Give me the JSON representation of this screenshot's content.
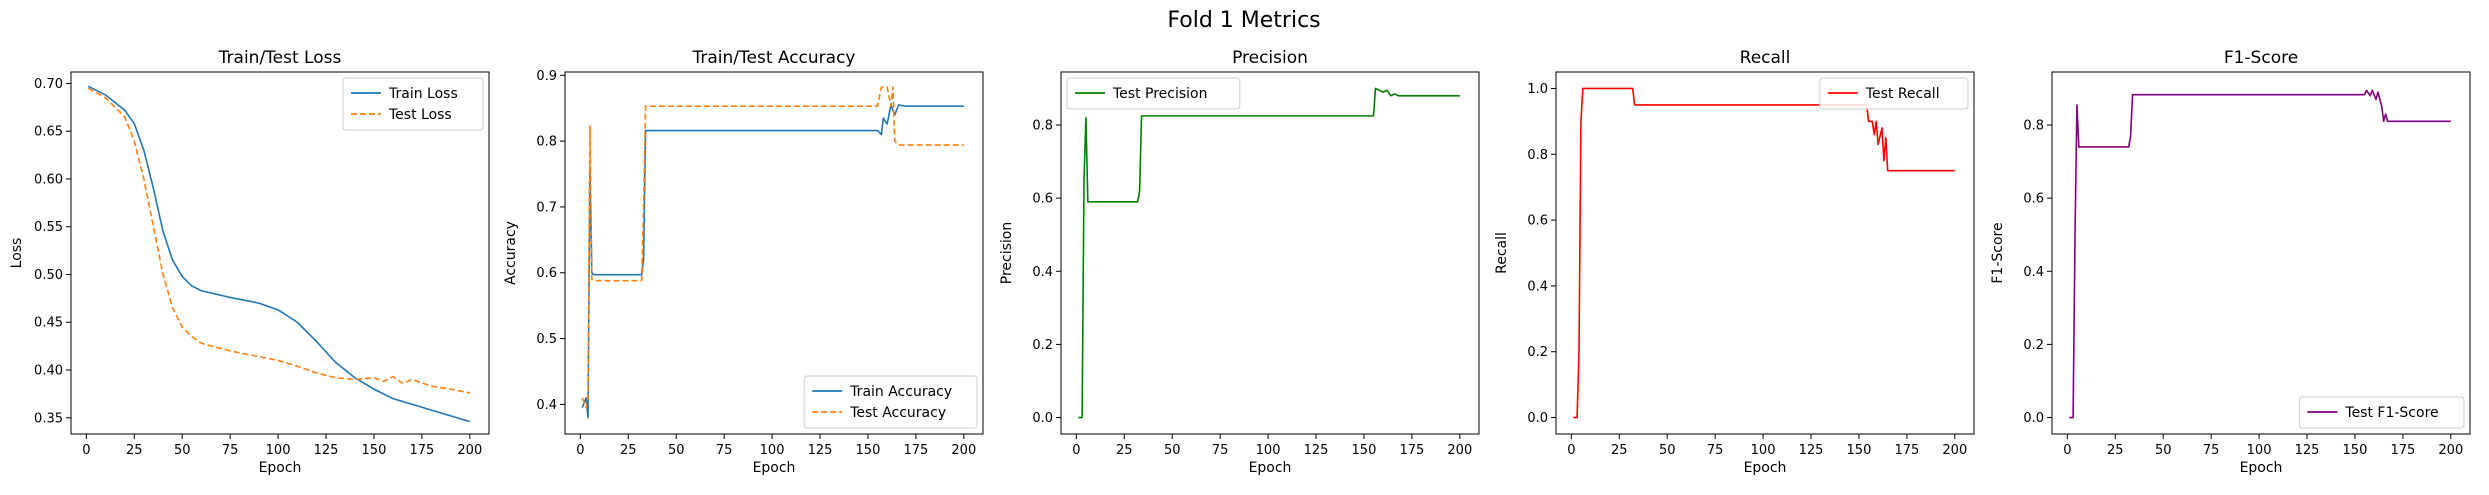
{
  "figure": {
    "suptitle": "Fold 1 Metrics"
  },
  "chart_data": [
    {
      "type": "line",
      "title": "Train/Test Loss",
      "xlabel": "Epoch",
      "ylabel": "Loss",
      "xlim": [
        -8,
        210
      ],
      "ylim": [
        0.333,
        0.712
      ],
      "xticks": [
        0,
        25,
        50,
        75,
        100,
        125,
        150,
        175,
        200
      ],
      "yticks": [
        0.35,
        0.4,
        0.45,
        0.5,
        0.55,
        0.6,
        0.65,
        0.7
      ],
      "ytick_labels": [
        "0.35",
        "0.40",
        "0.45",
        "0.50",
        "0.55",
        "0.60",
        "0.65",
        "0.70"
      ],
      "legend": "upper right",
      "grid": false,
      "series": [
        {
          "name": "Train Loss",
          "color": "#1f77b4",
          "style": "solid",
          "points": [
            [
              1,
              0.697
            ],
            [
              10,
              0.688
            ],
            [
              20,
              0.672
            ],
            [
              25,
              0.658
            ],
            [
              30,
              0.63
            ],
            [
              35,
              0.59
            ],
            [
              40,
              0.545
            ],
            [
              45,
              0.515
            ],
            [
              50,
              0.498
            ],
            [
              55,
              0.488
            ],
            [
              60,
              0.483
            ],
            [
              75,
              0.476
            ],
            [
              90,
              0.47
            ],
            [
              100,
              0.463
            ],
            [
              110,
              0.45
            ],
            [
              120,
              0.43
            ],
            [
              130,
              0.408
            ],
            [
              140,
              0.392
            ],
            [
              150,
              0.38
            ],
            [
              160,
              0.37
            ],
            [
              170,
              0.364
            ],
            [
              180,
              0.358
            ],
            [
              190,
              0.352
            ],
            [
              200,
              0.346
            ]
          ]
        },
        {
          "name": "Test Loss",
          "color": "#ff7f0e",
          "style": "dashed",
          "points": [
            [
              1,
              0.695
            ],
            [
              10,
              0.685
            ],
            [
              20,
              0.665
            ],
            [
              25,
              0.64
            ],
            [
              30,
              0.6
            ],
            [
              35,
              0.55
            ],
            [
              40,
              0.5
            ],
            [
              45,
              0.465
            ],
            [
              50,
              0.445
            ],
            [
              55,
              0.435
            ],
            [
              60,
              0.428
            ],
            [
              75,
              0.42
            ],
            [
              90,
              0.414
            ],
            [
              100,
              0.41
            ],
            [
              110,
              0.404
            ],
            [
              120,
              0.397
            ],
            [
              130,
              0.392
            ],
            [
              140,
              0.39
            ],
            [
              150,
              0.392
            ],
            [
              155,
              0.388
            ],
            [
              160,
              0.393
            ],
            [
              165,
              0.386
            ],
            [
              170,
              0.39
            ],
            [
              180,
              0.383
            ],
            [
              190,
              0.38
            ],
            [
              200,
              0.376
            ]
          ]
        }
      ]
    },
    {
      "type": "line",
      "title": "Train/Test Accuracy",
      "xlabel": "Epoch",
      "ylabel": "Accuracy",
      "xlim": [
        -8,
        210
      ],
      "ylim": [
        0.355,
        0.905
      ],
      "xticks": [
        0,
        25,
        50,
        75,
        100,
        125,
        150,
        175,
        200
      ],
      "yticks": [
        0.4,
        0.5,
        0.6,
        0.7,
        0.8,
        0.9
      ],
      "ytick_labels": [
        "0.4",
        "0.5",
        "0.6",
        "0.7",
        "0.8",
        "0.9"
      ],
      "legend": "lower right",
      "grid": false,
      "series": [
        {
          "name": "Train Accuracy",
          "color": "#1f77b4",
          "style": "solid",
          "points": [
            [
              1,
              0.395
            ],
            [
              3,
              0.41
            ],
            [
              4,
              0.38
            ],
            [
              5,
              0.76
            ],
            [
              6,
              0.6
            ],
            [
              7,
              0.597
            ],
            [
              32,
              0.597
            ],
            [
              33,
              0.62
            ],
            [
              34,
              0.816
            ],
            [
              155,
              0.816
            ],
            [
              157,
              0.81
            ],
            [
              158,
              0.835
            ],
            [
              160,
              0.826
            ],
            [
              162,
              0.855
            ],
            [
              164,
              0.84
            ],
            [
              166,
              0.855
            ],
            [
              170,
              0.853
            ],
            [
              200,
              0.853
            ]
          ]
        },
        {
          "name": "Test Accuracy",
          "color": "#ff7f0e",
          "style": "dashed",
          "points": [
            [
              1,
              0.41
            ],
            [
              3,
              0.395
            ],
            [
              4,
              0.41
            ],
            [
              5,
              0.823
            ],
            [
              6,
              0.59
            ],
            [
              7,
              0.588
            ],
            [
              32,
              0.588
            ],
            [
              33,
              0.7
            ],
            [
              34,
              0.853
            ],
            [
              155,
              0.853
            ],
            [
              157,
              0.882
            ],
            [
              160,
              0.882
            ],
            [
              162,
              0.853
            ],
            [
              163,
              0.882
            ],
            [
              164,
              0.8
            ],
            [
              166,
              0.794
            ],
            [
              200,
              0.794
            ]
          ]
        }
      ]
    },
    {
      "type": "line",
      "title": "Precision",
      "xlabel": "Epoch",
      "ylabel": "Precision",
      "xlim": [
        -8,
        210
      ],
      "ylim": [
        -0.045,
        0.945
      ],
      "xticks": [
        0,
        25,
        50,
        75,
        100,
        125,
        150,
        175,
        200
      ],
      "yticks": [
        0.0,
        0.2,
        0.4,
        0.6,
        0.8
      ],
      "ytick_labels": [
        "0.0",
        "0.2",
        "0.4",
        "0.6",
        "0.8"
      ],
      "legend": "upper left",
      "grid": false,
      "series": [
        {
          "name": "Test Precision",
          "color": "#008000",
          "style": "solid",
          "points": [
            [
              1,
              0.0
            ],
            [
              3,
              0.0
            ],
            [
              4,
              0.65
            ],
            [
              5,
              0.82
            ],
            [
              6,
              0.59
            ],
            [
              7,
              0.59
            ],
            [
              32,
              0.59
            ],
            [
              33,
              0.62
            ],
            [
              34,
              0.825
            ],
            [
              155,
              0.825
            ],
            [
              156,
              0.9
            ],
            [
              158,
              0.895
            ],
            [
              160,
              0.89
            ],
            [
              162,
              0.895
            ],
            [
              164,
              0.88
            ],
            [
              166,
              0.885
            ],
            [
              168,
              0.88
            ],
            [
              200,
              0.88
            ]
          ]
        }
      ]
    },
    {
      "type": "line",
      "title": "Recall",
      "xlabel": "Epoch",
      "ylabel": "Recall",
      "xlim": [
        -8,
        210
      ],
      "ylim": [
        -0.05,
        1.05
      ],
      "xticks": [
        0,
        25,
        50,
        75,
        100,
        125,
        150,
        175,
        200
      ],
      "yticks": [
        0.0,
        0.2,
        0.4,
        0.6,
        0.8,
        1.0
      ],
      "ytick_labels": [
        "0.0",
        "0.2",
        "0.4",
        "0.6",
        "0.8",
        "1.0"
      ],
      "legend": "upper right",
      "grid": false,
      "series": [
        {
          "name": "Test Recall",
          "color": "#ff0000",
          "style": "solid",
          "points": [
            [
              1,
              0.0
            ],
            [
              3,
              0.0
            ],
            [
              4,
              0.2
            ],
            [
              5,
              0.9
            ],
            [
              6,
              1.0
            ],
            [
              32,
              1.0
            ],
            [
              33,
              0.95
            ],
            [
              154,
              0.95
            ],
            [
              155,
              0.9
            ],
            [
              157,
              0.9
            ],
            [
              158,
              0.86
            ],
            [
              159,
              0.9
            ],
            [
              160,
              0.83
            ],
            [
              162,
              0.88
            ],
            [
              163,
              0.78
            ],
            [
              164,
              0.85
            ],
            [
              165,
              0.75
            ],
            [
              200,
              0.75
            ]
          ]
        }
      ]
    },
    {
      "type": "line",
      "title": "F1-Score",
      "xlabel": "Epoch",
      "ylabel": "F1-Score",
      "xlim": [
        -8,
        210
      ],
      "ylim": [
        -0.045,
        0.945
      ],
      "xticks": [
        0,
        25,
        50,
        75,
        100,
        125,
        150,
        175,
        200
      ],
      "yticks": [
        0.0,
        0.2,
        0.4,
        0.6,
        0.8
      ],
      "ytick_labels": [
        "0.0",
        "0.2",
        "0.4",
        "0.6",
        "0.8"
      ],
      "legend": "lower right",
      "grid": false,
      "series": [
        {
          "name": "Test F1-Score",
          "color": "#800080",
          "style": "solid",
          "points": [
            [
              1,
              0.0
            ],
            [
              3,
              0.0
            ],
            [
              4,
              0.5
            ],
            [
              5,
              0.855
            ],
            [
              6,
              0.74
            ],
            [
              7,
              0.74
            ],
            [
              32,
              0.74
            ],
            [
              33,
              0.77
            ],
            [
              34,
              0.883
            ],
            [
              155,
              0.883
            ],
            [
              156,
              0.895
            ],
            [
              158,
              0.88
            ],
            [
              159,
              0.895
            ],
            [
              161,
              0.87
            ],
            [
              162,
              0.89
            ],
            [
              164,
              0.85
            ],
            [
              165,
              0.81
            ],
            [
              166,
              0.83
            ],
            [
              167,
              0.81
            ],
            [
              200,
              0.81
            ]
          ]
        }
      ]
    }
  ]
}
